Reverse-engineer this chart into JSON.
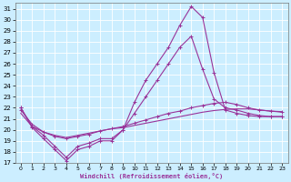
{
  "xlabel": "Windchill (Refroidissement éolien,°C)",
  "ylabel": "",
  "background_color": "#cceeff",
  "grid_color": "#aaddee",
  "line_color": "#993399",
  "xlim": [
    -0.5,
    23.5
  ],
  "ylim": [
    17,
    31.5
  ],
  "yticks": [
    17,
    18,
    19,
    20,
    21,
    22,
    23,
    24,
    25,
    26,
    27,
    28,
    29,
    30,
    31
  ],
  "xticks": [
    0,
    1,
    2,
    3,
    4,
    5,
    6,
    7,
    8,
    9,
    10,
    11,
    12,
    13,
    14,
    15,
    16,
    17,
    18,
    19,
    20,
    21,
    22,
    23
  ],
  "series": [
    {
      "x": [
        0,
        1,
        2,
        3,
        4,
        5,
        6,
        7,
        8,
        9,
        10,
        11,
        12,
        13,
        14,
        15,
        16,
        17,
        18,
        19,
        20,
        21,
        22,
        23
      ],
      "y": [
        22,
        20.2,
        19.2,
        18.2,
        17.2,
        18.2,
        18.5,
        19.0,
        19.0,
        20.0,
        22.5,
        24.5,
        26.0,
        27.5,
        29.5,
        31.2,
        30.2,
        25.2,
        21.8,
        21.5,
        21.3,
        21.2,
        21.2,
        21.2
      ],
      "marker": "+"
    },
    {
      "x": [
        0,
        1,
        2,
        3,
        4,
        5,
        6,
        7,
        8,
        9,
        10,
        11,
        12,
        13,
        14,
        15,
        16,
        17,
        18,
        19,
        20,
        21,
        22,
        23
      ],
      "y": [
        22.0,
        20.3,
        19.5,
        18.5,
        17.5,
        18.5,
        18.8,
        19.2,
        19.2,
        20.0,
        21.5,
        23.0,
        24.5,
        26.0,
        27.5,
        28.5,
        25.5,
        22.8,
        22.0,
        21.8,
        21.5,
        21.3,
        21.2,
        21.2
      ],
      "marker": "+"
    },
    {
      "x": [
        0,
        1,
        2,
        3,
        4,
        5,
        6,
        7,
        8,
        9,
        10,
        11,
        12,
        13,
        14,
        15,
        16,
        17,
        18,
        19,
        20,
        21,
        22,
        23
      ],
      "y": [
        21.8,
        20.5,
        19.8,
        19.4,
        19.2,
        19.4,
        19.6,
        19.9,
        20.1,
        20.3,
        20.6,
        20.9,
        21.2,
        21.5,
        21.7,
        22.0,
        22.2,
        22.4,
        22.5,
        22.3,
        22.0,
        21.8,
        21.7,
        21.6
      ],
      "marker": "+"
    },
    {
      "x": [
        0,
        1,
        2,
        3,
        4,
        5,
        6,
        7,
        8,
        9,
        10,
        11,
        12,
        13,
        14,
        15,
        16,
        17,
        18,
        19,
        20,
        21,
        22,
        23
      ],
      "y": [
        21.5,
        20.3,
        19.8,
        19.5,
        19.3,
        19.5,
        19.7,
        19.9,
        20.1,
        20.2,
        20.4,
        20.6,
        20.8,
        21.0,
        21.2,
        21.4,
        21.6,
        21.75,
        21.85,
        21.9,
        21.9,
        21.8,
        21.7,
        21.65
      ],
      "marker": null
    }
  ]
}
